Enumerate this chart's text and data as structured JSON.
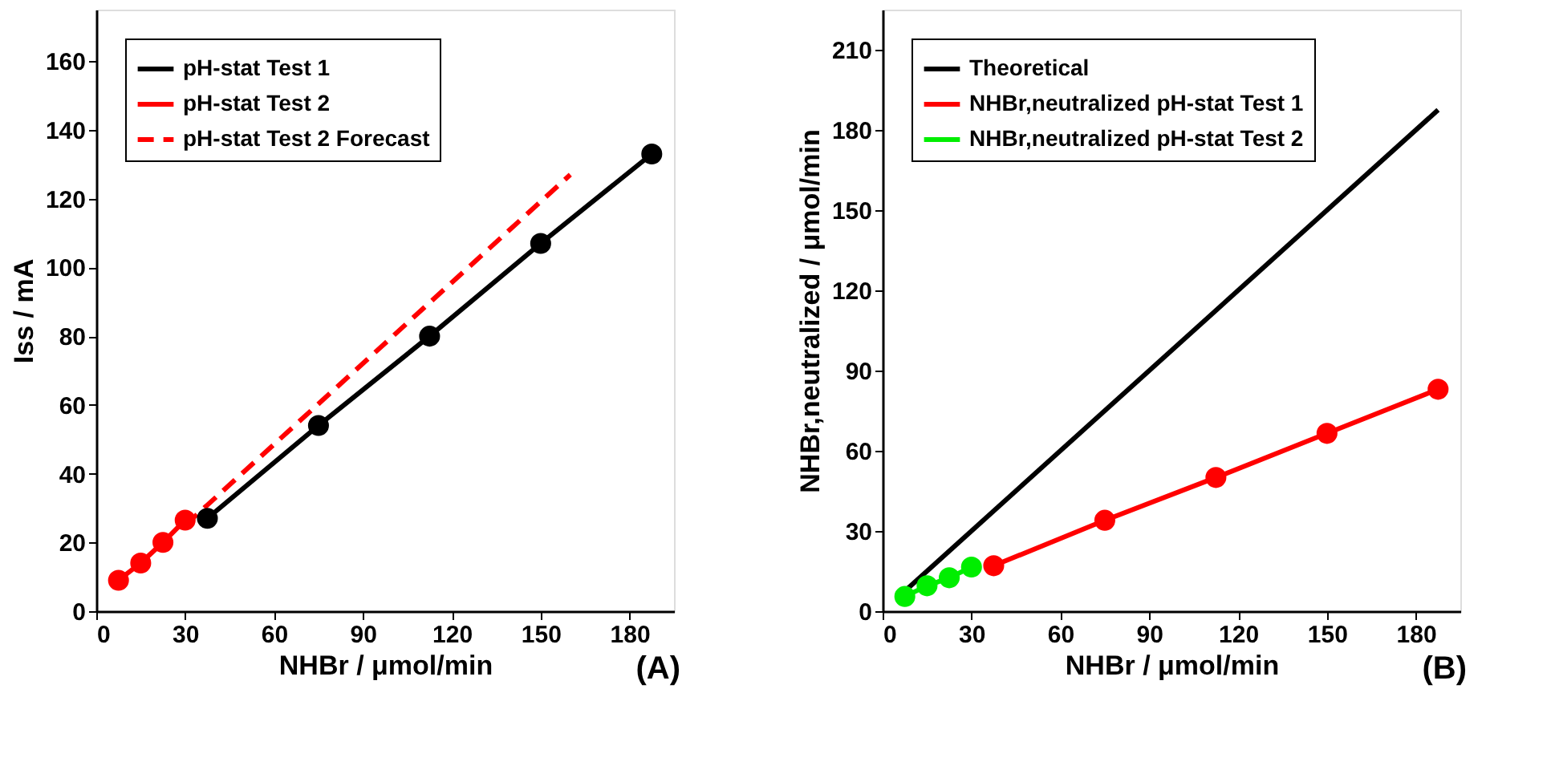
{
  "chart_data": [
    {
      "type": "line",
      "xlabel": "NHBr / μmol/min",
      "ylabel": "Iss / mA",
      "xlim": [
        0,
        195
      ],
      "xticks": [
        0,
        30,
        60,
        90,
        120,
        150,
        180
      ],
      "ylim": [
        0,
        175
      ],
      "yticks": [
        0,
        20,
        40,
        60,
        80,
        100,
        120,
        140,
        160
      ],
      "grid": false,
      "legend": "top left",
      "annotations": [
        "(A)"
      ],
      "series": [
        {
          "name": "pH-stat Test 1",
          "color": "#000000",
          "marker": "circle",
          "line_style": "solid",
          "x": [
            37.5,
            75,
            112.5,
            150,
            187.5
          ],
          "values": [
            27,
            54,
            80,
            107,
            133
          ]
        },
        {
          "name": "pH-stat Test 2",
          "color": "#ff0000",
          "marker": "circle",
          "line_style": "solid",
          "x": [
            7.5,
            15,
            22.5,
            30
          ],
          "values": [
            9,
            14,
            20,
            26.5
          ]
        },
        {
          "name": "pH-stat Test 2 Forecast",
          "color": "#ff0000",
          "marker": "none",
          "line_style": "dashed",
          "x": [
            30,
            160
          ],
          "values": [
            25,
            127
          ]
        }
      ]
    },
    {
      "type": "line",
      "xlabel": "NHBr / μmol/min",
      "ylabel": "NHBr,neutralized / μmol/min",
      "xlim": [
        0,
        195
      ],
      "xticks": [
        0,
        30,
        60,
        90,
        120,
        150,
        180
      ],
      "ylim": [
        0,
        225
      ],
      "yticks": [
        0,
        30,
        60,
        90,
        120,
        150,
        180,
        210
      ],
      "grid": false,
      "legend": "top left",
      "annotations": [
        "(B)"
      ],
      "series": [
        {
          "name": "Theoretical",
          "color": "#000000",
          "marker": "none",
          "line_style": "solid",
          "x": [
            7.5,
            187.5
          ],
          "values": [
            7.5,
            187.5
          ]
        },
        {
          "name": "NHBr,neutralized pH-stat Test 1",
          "color": "#ff0000",
          "marker": "circle",
          "line_style": "solid",
          "x": [
            37.5,
            75,
            112.5,
            150,
            187.5
          ],
          "values": [
            17,
            34,
            50,
            66.5,
            83
          ]
        },
        {
          "name": "NHBr,neutralized pH-stat Test 2",
          "color": "#00ee00",
          "marker": "circle",
          "line_style": "solid",
          "x": [
            7.5,
            15,
            22.5,
            30
          ],
          "values": [
            5.5,
            9.5,
            12.5,
            16.5
          ]
        }
      ]
    }
  ]
}
